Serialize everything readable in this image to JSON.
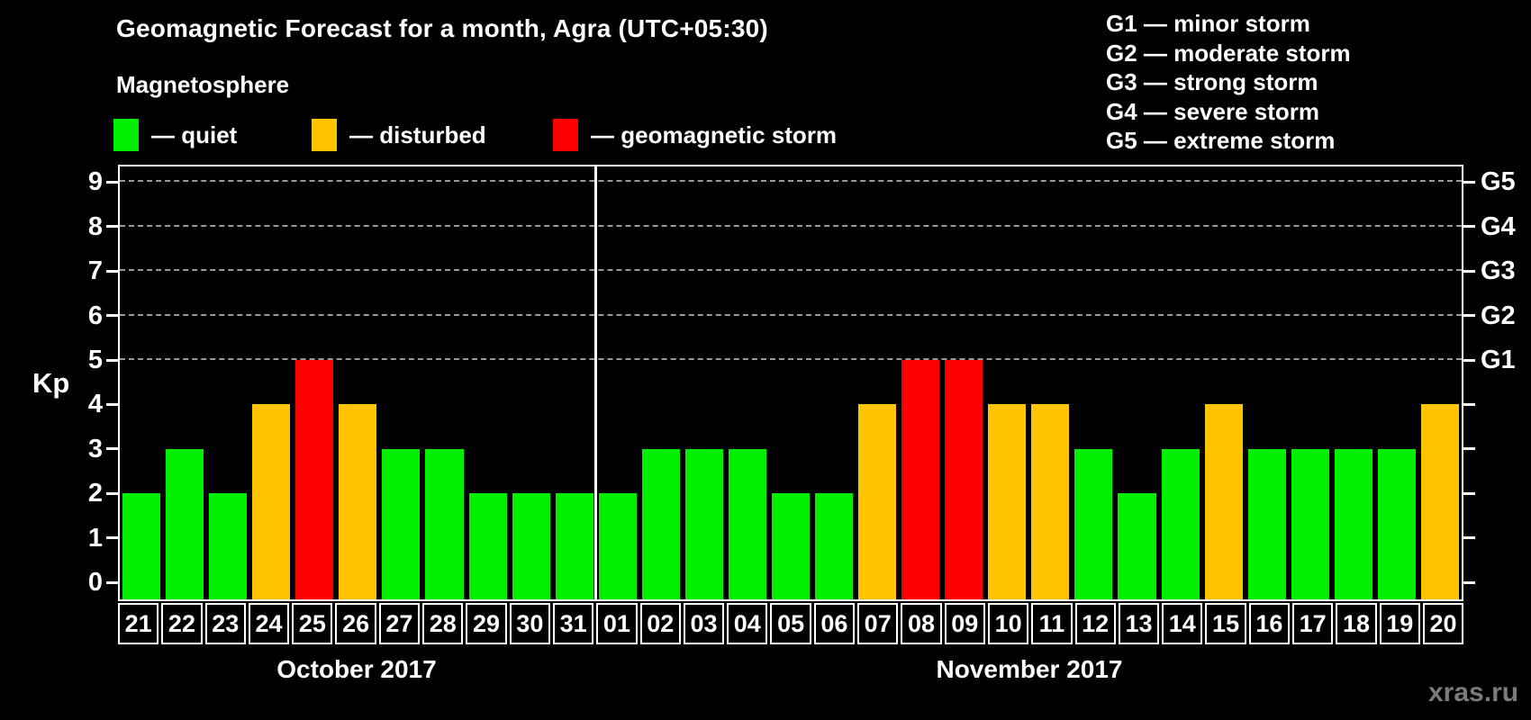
{
  "title": "Geomagnetic Forecast for a month, Agra (UTC+05:30)",
  "subtitle": "Magnetosphere",
  "legend": {
    "items": [
      {
        "state": "quiet",
        "label": "— quiet"
      },
      {
        "state": "disturbed",
        "label": "— disturbed"
      },
      {
        "state": "storm",
        "label": "— geomagnetic storm"
      }
    ]
  },
  "storm_scale_legend": [
    "G1 — minor storm",
    "G2 — moderate storm",
    "G3 — strong storm",
    "G4 — severe storm",
    "G5 — extreme storm"
  ],
  "colors": {
    "quiet": "#00ee00",
    "disturbed": "#ffc300",
    "storm": "#ff0000",
    "background": "#000000",
    "grid": "#9a9a9a",
    "axis": "#ffffff",
    "watermark": "#7b7b7b"
  },
  "watermark": "xras.ru",
  "chart_data": {
    "type": "bar",
    "title": "Geomagnetic Forecast for a month, Agra (UTC+05:30)",
    "ylabel": "Kp",
    "xlabel": "",
    "ylim": [
      0,
      9
    ],
    "yticks": [
      0,
      1,
      2,
      3,
      4,
      5,
      6,
      7,
      8,
      9
    ],
    "gridlines_at": [
      5,
      6,
      7,
      8,
      9
    ],
    "grid": "dashed horizontal at Kp 5-9",
    "legend_position": "top",
    "right_axis_labels": [
      {
        "value": 5,
        "label": "G1"
      },
      {
        "value": 6,
        "label": "G2"
      },
      {
        "value": 7,
        "label": "G3"
      },
      {
        "value": 8,
        "label": "G4"
      },
      {
        "value": 9,
        "label": "G5"
      }
    ],
    "groups": [
      {
        "label": "October 2017",
        "days": [
          {
            "day": "21",
            "kp": 2,
            "state": "quiet"
          },
          {
            "day": "22",
            "kp": 3,
            "state": "quiet"
          },
          {
            "day": "23",
            "kp": 2,
            "state": "quiet"
          },
          {
            "day": "24",
            "kp": 4,
            "state": "disturbed"
          },
          {
            "day": "25",
            "kp": 5,
            "state": "storm"
          },
          {
            "day": "26",
            "kp": 4,
            "state": "disturbed"
          },
          {
            "day": "27",
            "kp": 3,
            "state": "quiet"
          },
          {
            "day": "28",
            "kp": 3,
            "state": "quiet"
          },
          {
            "day": "29",
            "kp": 2,
            "state": "quiet"
          },
          {
            "day": "30",
            "kp": 2,
            "state": "quiet"
          },
          {
            "day": "31",
            "kp": 2,
            "state": "quiet"
          }
        ]
      },
      {
        "label": "November 2017",
        "days": [
          {
            "day": "01",
            "kp": 2,
            "state": "quiet"
          },
          {
            "day": "02",
            "kp": 3,
            "state": "quiet"
          },
          {
            "day": "03",
            "kp": 3,
            "state": "quiet"
          },
          {
            "day": "04",
            "kp": 3,
            "state": "quiet"
          },
          {
            "day": "05",
            "kp": 2,
            "state": "quiet"
          },
          {
            "day": "06",
            "kp": 2,
            "state": "quiet"
          },
          {
            "day": "07",
            "kp": 4,
            "state": "disturbed"
          },
          {
            "day": "08",
            "kp": 5,
            "state": "storm"
          },
          {
            "day": "09",
            "kp": 5,
            "state": "storm"
          },
          {
            "day": "10",
            "kp": 4,
            "state": "disturbed"
          },
          {
            "day": "11",
            "kp": 4,
            "state": "disturbed"
          },
          {
            "day": "12",
            "kp": 3,
            "state": "quiet"
          },
          {
            "day": "13",
            "kp": 2,
            "state": "quiet"
          },
          {
            "day": "14",
            "kp": 3,
            "state": "quiet"
          },
          {
            "day": "15",
            "kp": 4,
            "state": "disturbed"
          },
          {
            "day": "16",
            "kp": 3,
            "state": "quiet"
          },
          {
            "day": "17",
            "kp": 3,
            "state": "quiet"
          },
          {
            "day": "18",
            "kp": 3,
            "state": "quiet"
          },
          {
            "day": "19",
            "kp": 3,
            "state": "quiet"
          },
          {
            "day": "20",
            "kp": 4,
            "state": "disturbed"
          }
        ]
      }
    ]
  }
}
